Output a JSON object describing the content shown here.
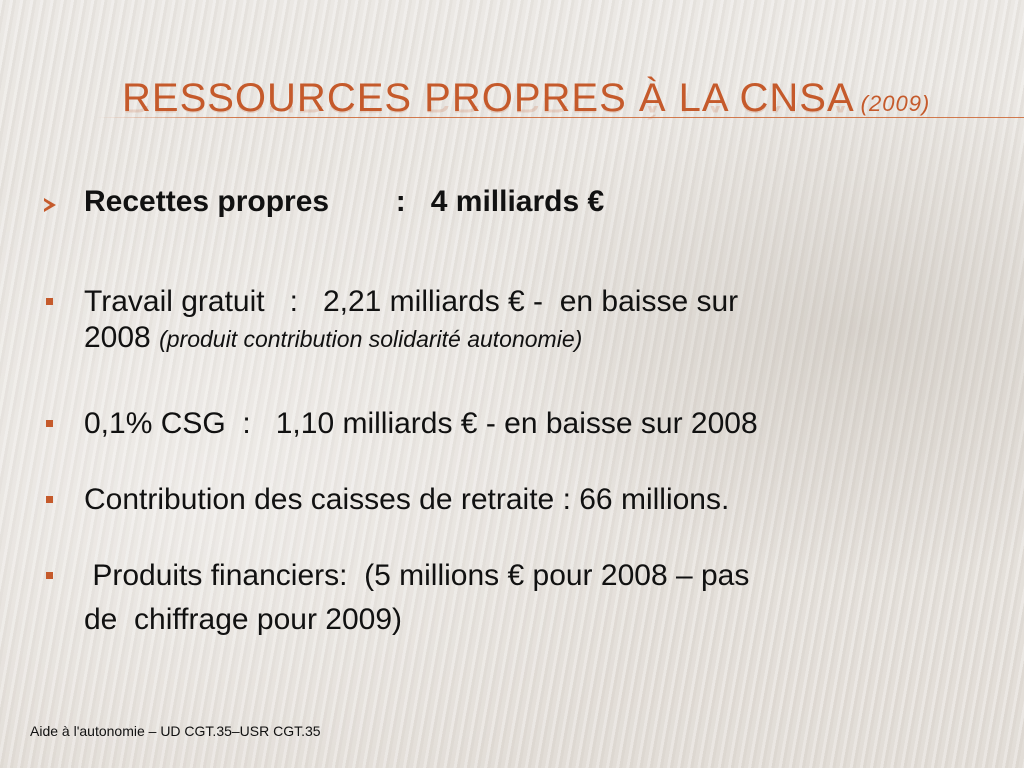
{
  "slide": {
    "title": "Ressources propres à la CNSA",
    "title_year": "(2009)",
    "accent_color": "#c55a2b",
    "items": [
      {
        "marker": "arrow-bullet-icon",
        "bold": true,
        "text": "Recettes propres        :   4 milliards €"
      },
      {
        "marker": "square-bullet-icon",
        "line1": "Travail gratuit   :   2,21 milliards € -  en baisse sur",
        "line2_plain": "2008",
        "line2_italic": "(produit contribution solidarité autonomie)"
      },
      {
        "marker": "square-bullet-icon",
        "text": "0,1% CSG  :   1,10 milliards € - en baisse sur 2008"
      },
      {
        "marker": "square-bullet-icon",
        "text": "Contribution des caisses de retraite : 66 millions."
      },
      {
        "marker": "square-bullet-icon",
        "line1": " Produits financiers:  (5 millions € pour 2008 – pas",
        "line2": "de  chiffrage pour 2009)"
      }
    ]
  },
  "footer": {
    "text": "Aide à l'autonomie – UD CGT.35–USR CGT.35"
  }
}
